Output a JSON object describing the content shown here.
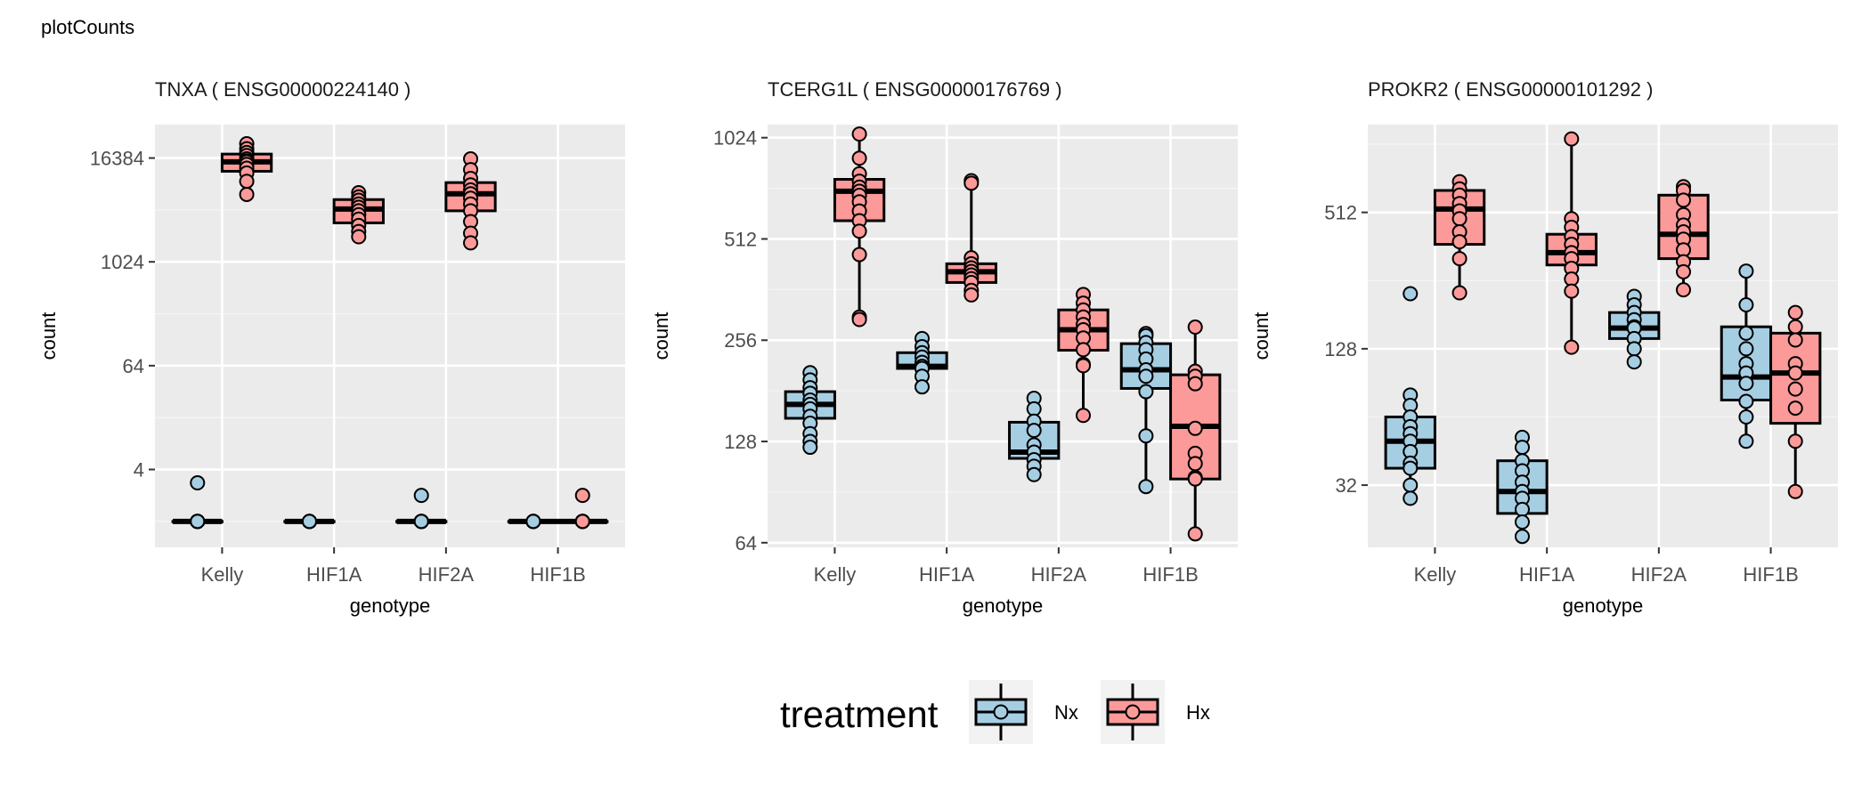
{
  "page": {
    "title": "plotCounts"
  },
  "legend": {
    "title": "treatment",
    "placement": "bottom",
    "items": [
      {
        "key": "Nx",
        "label": "Nx",
        "color": "#a6cee3"
      },
      {
        "key": "Hx",
        "label": "Hx",
        "color": "#fb9a99"
      }
    ]
  },
  "chart_data": [
    {
      "type": "box",
      "title": "TNXA ( ENSG00000224140 )",
      "xlabel": "genotype",
      "ylabel": "count",
      "scale": "log2",
      "ylim": [
        0.5,
        40000
      ],
      "y_ticks": [
        4,
        64,
        1024,
        16384
      ],
      "categories": [
        "Kelly",
        "HIF1A",
        "HIF2A",
        "HIF1B"
      ],
      "grid": true,
      "series": [
        {
          "name": "Nx",
          "color": "#a6cee3",
          "boxes": [
            {
              "category": "Kelly",
              "min": 1,
              "q1": 1,
              "median": 1,
              "q3": 1,
              "max": 1,
              "points": [
                1,
                1,
                1,
                1,
                1,
                1,
                1,
                1,
                1,
                1,
                1,
                2.8
              ]
            },
            {
              "category": "HIF1A",
              "min": 1,
              "q1": 1,
              "median": 1,
              "q3": 1,
              "max": 1,
              "points": [
                1,
                1,
                1,
                1,
                1,
                1,
                1,
                1,
                1,
                1
              ]
            },
            {
              "category": "HIF2A",
              "min": 1,
              "q1": 1,
              "median": 1,
              "q3": 1,
              "max": 1,
              "points": [
                1,
                1,
                1,
                1,
                1,
                1,
                1,
                1,
                1,
                1,
                2
              ]
            },
            {
              "category": "HIF1B",
              "min": 1,
              "q1": 1,
              "median": 1,
              "q3": 1,
              "max": 1,
              "points": [
                1,
                1,
                1,
                1,
                1,
                1,
                1,
                1,
                1,
                1
              ]
            }
          ]
        },
        {
          "name": "Hx",
          "color": "#fb9a99",
          "boxes": [
            {
              "category": "Kelly",
              "min": 6200,
              "q1": 11500,
              "median": 14800,
              "q3": 18200,
              "max": 24000,
              "points": [
                24000,
                21000,
                19000,
                17500,
                16000,
                15200,
                14800,
                13800,
                12500,
                11000,
                8800,
                6200
              ]
            },
            {
              "category": "HIF1A",
              "min": 2000,
              "q1": 2900,
              "median": 4200,
              "q3": 5400,
              "max": 6500,
              "points": [
                6500,
                5800,
                5300,
                4800,
                4400,
                4000,
                3600,
                3200,
                2700,
                2300,
                2000
              ]
            },
            {
              "category": "HIF2A",
              "min": 1700,
              "q1": 4000,
              "median": 6300,
              "q3": 8500,
              "max": 16000,
              "points": [
                16000,
                12000,
                9500,
                8000,
                7000,
                6300,
                5600,
                4800,
                4000,
                3000,
                2200,
                1700
              ]
            },
            {
              "category": "HIF1B",
              "min": 1,
              "q1": 1,
              "median": 1,
              "q3": 1,
              "max": 1,
              "points": [
                1,
                1,
                1,
                1,
                1,
                1,
                1,
                1,
                1,
                1,
                2
              ]
            }
          ]
        }
      ]
    },
    {
      "type": "box",
      "title": "TCERG1L ( ENSG00000176769 )",
      "xlabel": "genotype",
      "ylabel": "count",
      "scale": "log2",
      "ylim": [
        62,
        1120
      ],
      "y_ticks": [
        64,
        128,
        256,
        512,
        1024
      ],
      "categories": [
        "Kelly",
        "HIF1A",
        "HIF2A",
        "HIF1B"
      ],
      "grid": true,
      "series": [
        {
          "name": "Nx",
          "color": "#a6cee3",
          "boxes": [
            {
              "category": "Kelly",
              "min": 123,
              "q1": 150,
              "median": 165,
              "q3": 180,
              "max": 205,
              "points": [
                205,
                195,
                185,
                178,
                170,
                165,
                160,
                152,
                145,
                135,
                128,
                123
              ]
            },
            {
              "category": "HIF1A",
              "min": 186,
              "q1": 211,
              "median": 214,
              "q3": 235,
              "max": 259,
              "points": [
                259,
                245,
                235,
                228,
                220,
                214,
                211,
                200,
                186
              ]
            },
            {
              "category": "HIF2A",
              "min": 102,
              "q1": 114,
              "median": 119,
              "q3": 146,
              "max": 172,
              "points": [
                172,
                160,
                147,
                138,
                125,
                119,
                113,
                108,
                102
              ]
            },
            {
              "category": "HIF1B",
              "min": 94,
              "q1": 184,
              "median": 209,
              "q3": 250,
              "max": 268,
              "points": [
                268,
                264,
                252,
                240,
                225,
                209,
                200,
                180,
                133,
                94
              ]
            }
          ]
        },
        {
          "name": "Hx",
          "color": "#fb9a99",
          "boxes": [
            {
              "category": "Kelly",
              "min": 295,
              "q1": 580,
              "median": 710,
              "q3": 770,
              "max": 1050,
              "points": [
                1050,
                890,
                800,
                760,
                730,
                710,
                690,
                660,
                620,
                580,
                540,
                460,
                300,
                295
              ]
            },
            {
              "category": "HIF1A",
              "min": 349,
              "q1": 380,
              "median": 409,
              "q3": 432,
              "max": 763,
              "points": [
                763,
                750,
                450,
                432,
                420,
                410,
                400,
                390,
                380,
                360,
                349
              ]
            },
            {
              "category": "HIF2A",
              "min": 153,
              "q1": 239,
              "median": 275,
              "q3": 315,
              "max": 350,
              "points": [
                350,
                330,
                315,
                300,
                285,
                275,
                260,
                240,
                217,
                215,
                153
              ]
            },
            {
              "category": "HIF1B",
              "min": 68,
              "q1": 99,
              "median": 142,
              "q3": 202,
              "max": 280,
              "points": [
                280,
                207,
                200,
                190,
                140,
                118,
                110,
                100,
                99,
                68
              ]
            }
          ]
        }
      ]
    },
    {
      "type": "box",
      "title": "PROKR2 ( ENSG00000101292 )",
      "xlabel": "genotype",
      "ylabel": "count",
      "scale": "log2",
      "ylim": [
        17,
        1250
      ],
      "y_ticks": [
        32,
        128,
        512
      ],
      "categories": [
        "Kelly",
        "HIF1A",
        "HIF2A",
        "HIF1B"
      ],
      "grid": true,
      "series": [
        {
          "name": "Nx",
          "color": "#a6cee3",
          "boxes": [
            {
              "category": "Kelly",
              "min": 28,
              "q1": 38,
              "median": 50,
              "q3": 64,
              "max": 80,
              "points": [
                224,
                80,
                72,
                64,
                58,
                54,
                50,
                45,
                40,
                38,
                32,
                28
              ]
            },
            {
              "category": "HIF1A",
              "min": 19,
              "q1": 24,
              "median": 30,
              "q3": 41,
              "max": 52,
              "points": [
                52,
                47,
                41,
                37,
                33,
                30,
                28,
                25,
                22,
                19
              ]
            },
            {
              "category": "HIF2A",
              "min": 112,
              "q1": 142,
              "median": 158,
              "q3": 185,
              "max": 218,
              "points": [
                218,
                200,
                185,
                172,
                160,
                158,
                142,
                128,
                112
              ]
            },
            {
              "category": "HIF1B",
              "min": 50,
              "q1": 76,
              "median": 96,
              "q3": 160,
              "max": 282,
              "points": [
                282,
                200,
                150,
                128,
                110,
                100,
                90,
                75,
                64,
                50
              ]
            }
          ]
        },
        {
          "name": "Hx",
          "color": "#fb9a99",
          "boxes": [
            {
              "category": "Kelly",
              "min": 226,
              "q1": 370,
              "median": 530,
              "q3": 640,
              "max": 700,
              "points": [
                700,
                650,
                610,
                560,
                520,
                480,
                420,
                380,
                320,
                226
              ]
            },
            {
              "category": "HIF1A",
              "min": 130,
              "q1": 300,
              "median": 340,
              "q3": 410,
              "max": 1080,
              "points": [
                1080,
                480,
                440,
                400,
                370,
                340,
                320,
                290,
                260,
                230,
                130
              ]
            },
            {
              "category": "HIF2A",
              "min": 233,
              "q1": 320,
              "median": 410,
              "q3": 610,
              "max": 665,
              "points": [
                665,
                640,
                580,
                500,
                450,
                420,
                390,
                350,
                310,
                280,
                233
              ]
            },
            {
              "category": "HIF1B",
              "min": 30,
              "q1": 60,
              "median": 100,
              "q3": 150,
              "max": 185,
              "points": [
                185,
                160,
                140,
                110,
                100,
                85,
                70,
                50,
                30
              ]
            }
          ]
        }
      ]
    }
  ]
}
